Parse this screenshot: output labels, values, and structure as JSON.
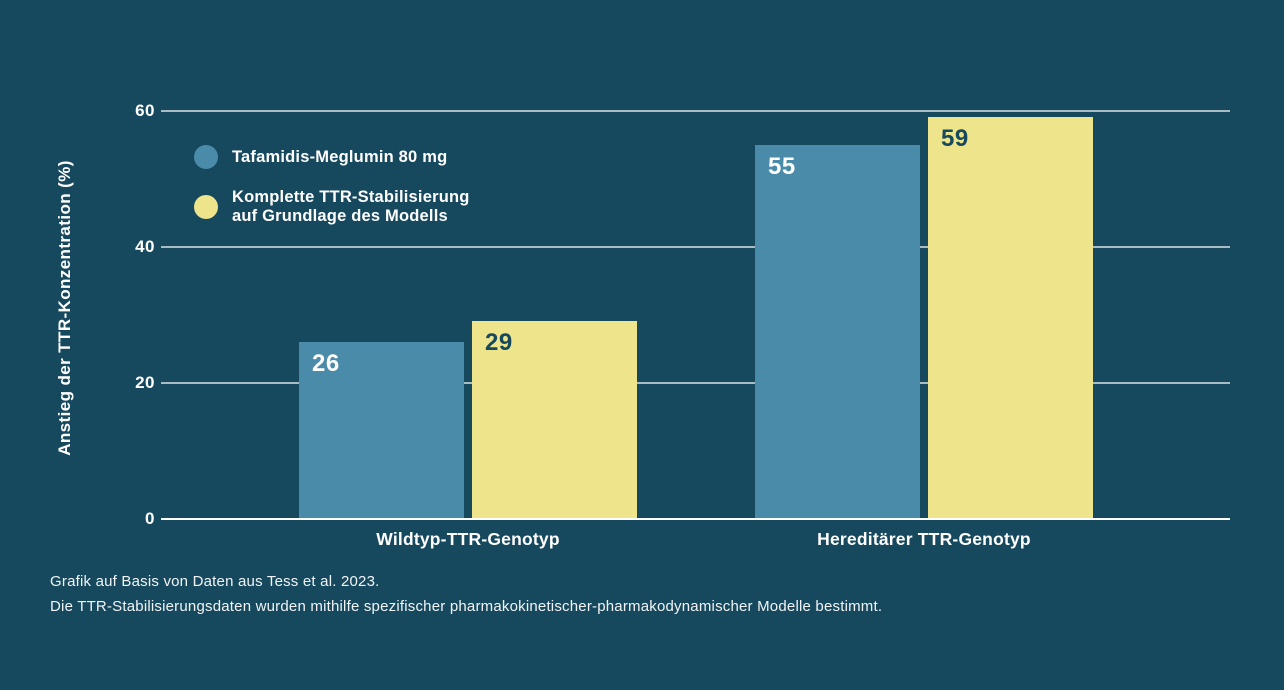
{
  "chart_data": {
    "type": "bar",
    "categories": [
      "Wildtyp-TTR-Genotyp",
      "Hereditärer TTR-Genotyp"
    ],
    "series": [
      {
        "name": "Tafamidis-Meglumin 80 mg",
        "values": [
          26,
          55
        ],
        "color": "#4A8BA9",
        "value_label_color": "#FFFFFF"
      },
      {
        "name": "Komplette TTR-Stabilisierung auf Grundlage des Modells",
        "values": [
          29,
          59
        ],
        "color": "#EDE48C",
        "value_label_color": "#16495E"
      }
    ],
    "title": "",
    "xlabel": "",
    "ylabel": "Anstieg der TTR-Konzentration (%)",
    "ylim": [
      0,
      60
    ],
    "yticks": [
      0,
      20,
      40,
      60
    ],
    "grid": "horizontal",
    "legend_position": "upper-left-inside"
  },
  "legend": {
    "items": [
      {
        "label": "Tafamidis-Meglumin 80 mg",
        "color": "#4A8BA9"
      },
      {
        "lines": [
          "Komplette TTR-Stabilisierung",
          "auf Grundlage des Modells"
        ],
        "color": "#EDE48C"
      }
    ]
  },
  "footnotes": [
    "Grafik auf Basis von Daten aus Tess et al. 2023.",
    "Die TTR-Stabilisierungsdaten wurden mithilfe spezifischer pharmakokinetischer-pharmakodynamischer Modelle bestimmt."
  ],
  "colors": {
    "background": "#17495E",
    "gridline": "#C3D0D6",
    "axis_line": "#FFFFFF",
    "text": "#FFFFFF"
  }
}
